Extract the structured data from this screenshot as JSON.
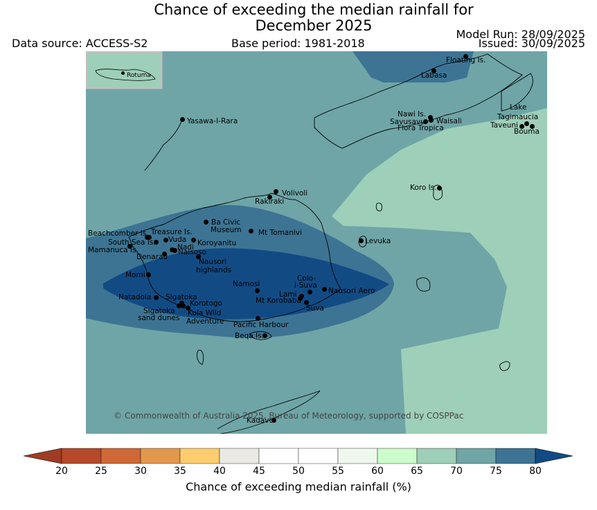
{
  "title": {
    "line1": "Chance of exceeding the median rainfall for",
    "line2": "December 2025"
  },
  "header": {
    "data_source": "Data source: ACCESS-S2",
    "base_period": "Base period: 1981-2018",
    "model_run": "Model Run: 28/09/2025",
    "issued": "Issued: 30/09/2025"
  },
  "inset": {
    "label": "Rotuma"
  },
  "places": [
    {
      "name": "Floating Is.",
      "dot": true
    },
    {
      "name": "Labasa",
      "dot": true
    },
    {
      "name": "Yasawa-I-Rara",
      "dot": true
    },
    {
      "name": "Nawi Is.",
      "dot": true
    },
    {
      "name": "Savusavu",
      "dot": true
    },
    {
      "name": "Waisali",
      "dot": true
    },
    {
      "name": "Flora Tropica",
      "dot": false
    },
    {
      "name": "Lake",
      "dot": false
    },
    {
      "name": "Tagimaucia",
      "dot": true
    },
    {
      "name": "Taveuni",
      "dot": true
    },
    {
      "name": "Bouma",
      "dot": true
    },
    {
      "name": "Volivoli",
      "dot": true
    },
    {
      "name": "Rakiraki",
      "dot": true
    },
    {
      "name": "Koro Is.",
      "dot": true
    },
    {
      "name": "Ba Civic",
      "dot": true
    },
    {
      "name": "Museum",
      "dot": false
    },
    {
      "name": "Mt Tomanivi",
      "dot": true
    },
    {
      "name": "Beachcomber Is.",
      "dot": true
    },
    {
      "name": "Treasure Is.",
      "dot": true
    },
    {
      "name": "South Sea Is.",
      "dot": true
    },
    {
      "name": "Vuda",
      "dot": true
    },
    {
      "name": "Koroyanitu",
      "dot": true
    },
    {
      "name": "Nadi",
      "dot": true
    },
    {
      "name": "Mamanuca Is.",
      "dot": true
    },
    {
      "name": "Naisoso",
      "dot": true
    },
    {
      "name": "Denarau",
      "dot": true
    },
    {
      "name": "Nausori",
      "dot": true
    },
    {
      "name": "highlands",
      "dot": false
    },
    {
      "name": "Levuka",
      "dot": true
    },
    {
      "name": "Momi",
      "dot": true
    },
    {
      "name": "Namosi",
      "dot": true
    },
    {
      "name": "Colo-",
      "dot": false
    },
    {
      "name": "i-Suva",
      "dot": true
    },
    {
      "name": "Nausori Aero",
      "dot": true
    },
    {
      "name": "Lami",
      "dot": true
    },
    {
      "name": "Mt Korobaba",
      "dot": true
    },
    {
      "name": "Suva",
      "dot": true
    },
    {
      "name": "Natadola",
      "dot": true
    },
    {
      "name": "Sigatoka",
      "dot": true
    },
    {
      "name": "Korotogo",
      "dot": true
    },
    {
      "name": "Sigatoka",
      "dot": true
    },
    {
      "name": "sand dunes",
      "dot": false
    },
    {
      "name": "Kula Wild",
      "dot": true
    },
    {
      "name": "Adventure",
      "dot": false
    },
    {
      "name": "Pacific Harbour",
      "dot": true
    },
    {
      "name": "Beqa Is.",
      "dot": true
    },
    {
      "name": "Kadavu",
      "dot": true
    }
  ],
  "copyright": "© Commonwealth of Australia 2025, Bureau of Meteorology, supported by COSPPac",
  "colorbar": {
    "label": "Chance of exceeding median rainfall (%)",
    "ticks": [
      "20",
      "25",
      "30",
      "35",
      "40",
      "45",
      "50",
      "55",
      "60",
      "65",
      "70",
      "75",
      "80"
    ],
    "colors": [
      "#b5492a",
      "#cf6837",
      "#e2984c",
      "#fbcd6e",
      "#ebe9e4",
      "#ffffff",
      "#ffffff",
      "#eef8ee",
      "#ccfccc",
      "#9ecfb8",
      "#6fa5a7",
      "#3d7493"
    ],
    "under_color": "#9e3d24",
    "over_color": "#124b84"
  },
  "map_colors": {
    "band_65_70": "#9ecfb8",
    "band_70_75": "#6fa5a7",
    "band_75_80": "#3d7493",
    "band_over_80": "#124b84",
    "inset_frame": "#bfbfbf"
  }
}
